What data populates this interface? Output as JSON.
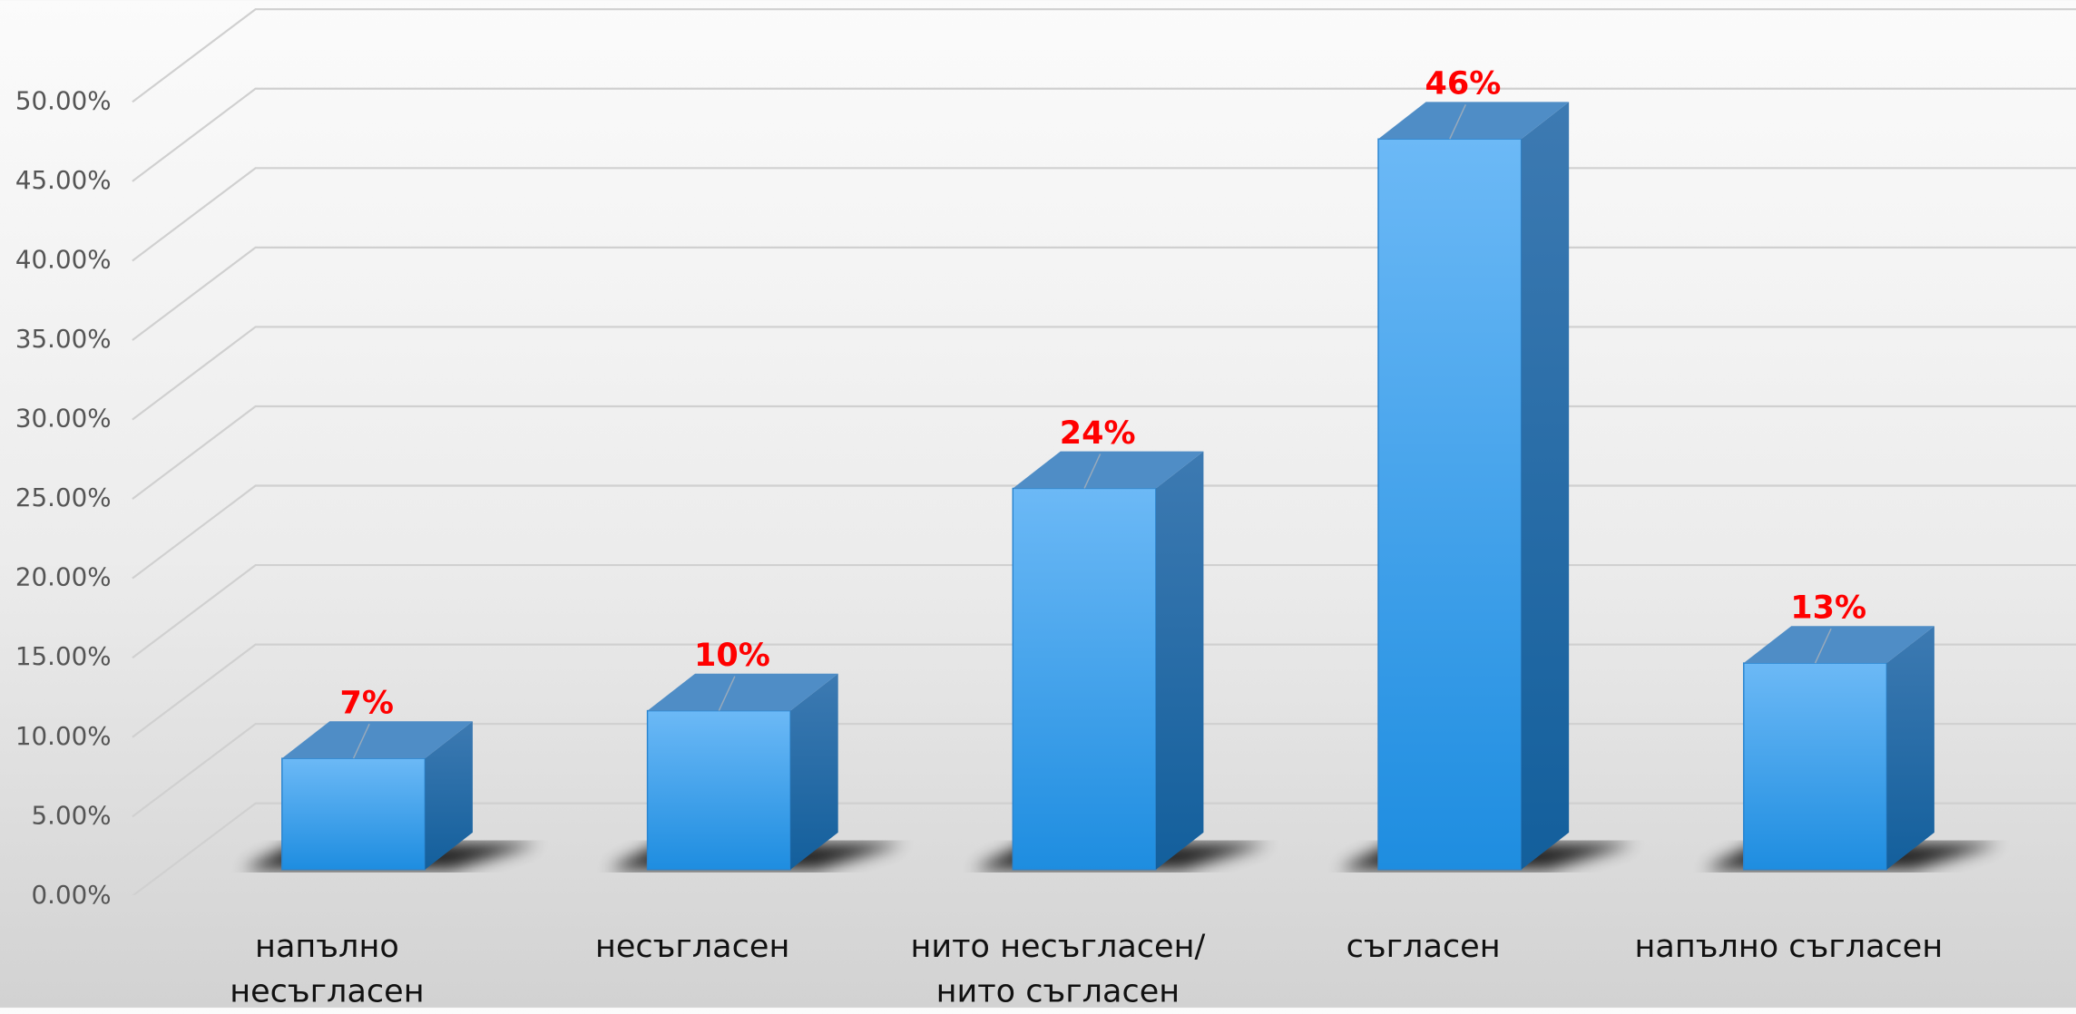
{
  "chart_data": {
    "type": "bar3d",
    "categories": [
      "напълно несъгласен",
      "несъгласен",
      "нито несъгласен/ нито съгласен",
      "съгласен",
      "напълно съгласен"
    ],
    "values": [
      7,
      10,
      24,
      46,
      13
    ],
    "value_labels": [
      "7%",
      "10%",
      "24%",
      "46%",
      "13%"
    ],
    "color": "#3aa0ee",
    "ylim": [
      0,
      50
    ],
    "yticks": [
      {
        "value": 0,
        "label": "0.00%"
      },
      {
        "value": 5,
        "label": "5.00%"
      },
      {
        "value": 10,
        "label": "10.00%"
      },
      {
        "value": 15,
        "label": "15.00%"
      },
      {
        "value": 20,
        "label": "20.00%"
      },
      {
        "value": 25,
        "label": "25.00%"
      },
      {
        "value": 30,
        "label": "30.00%"
      },
      {
        "value": 35,
        "label": "35.00%"
      },
      {
        "value": 40,
        "label": "40.00%"
      },
      {
        "value": 45,
        "label": "45.00%"
      },
      {
        "value": 50,
        "label": "50.00%"
      }
    ],
    "grid": true
  }
}
